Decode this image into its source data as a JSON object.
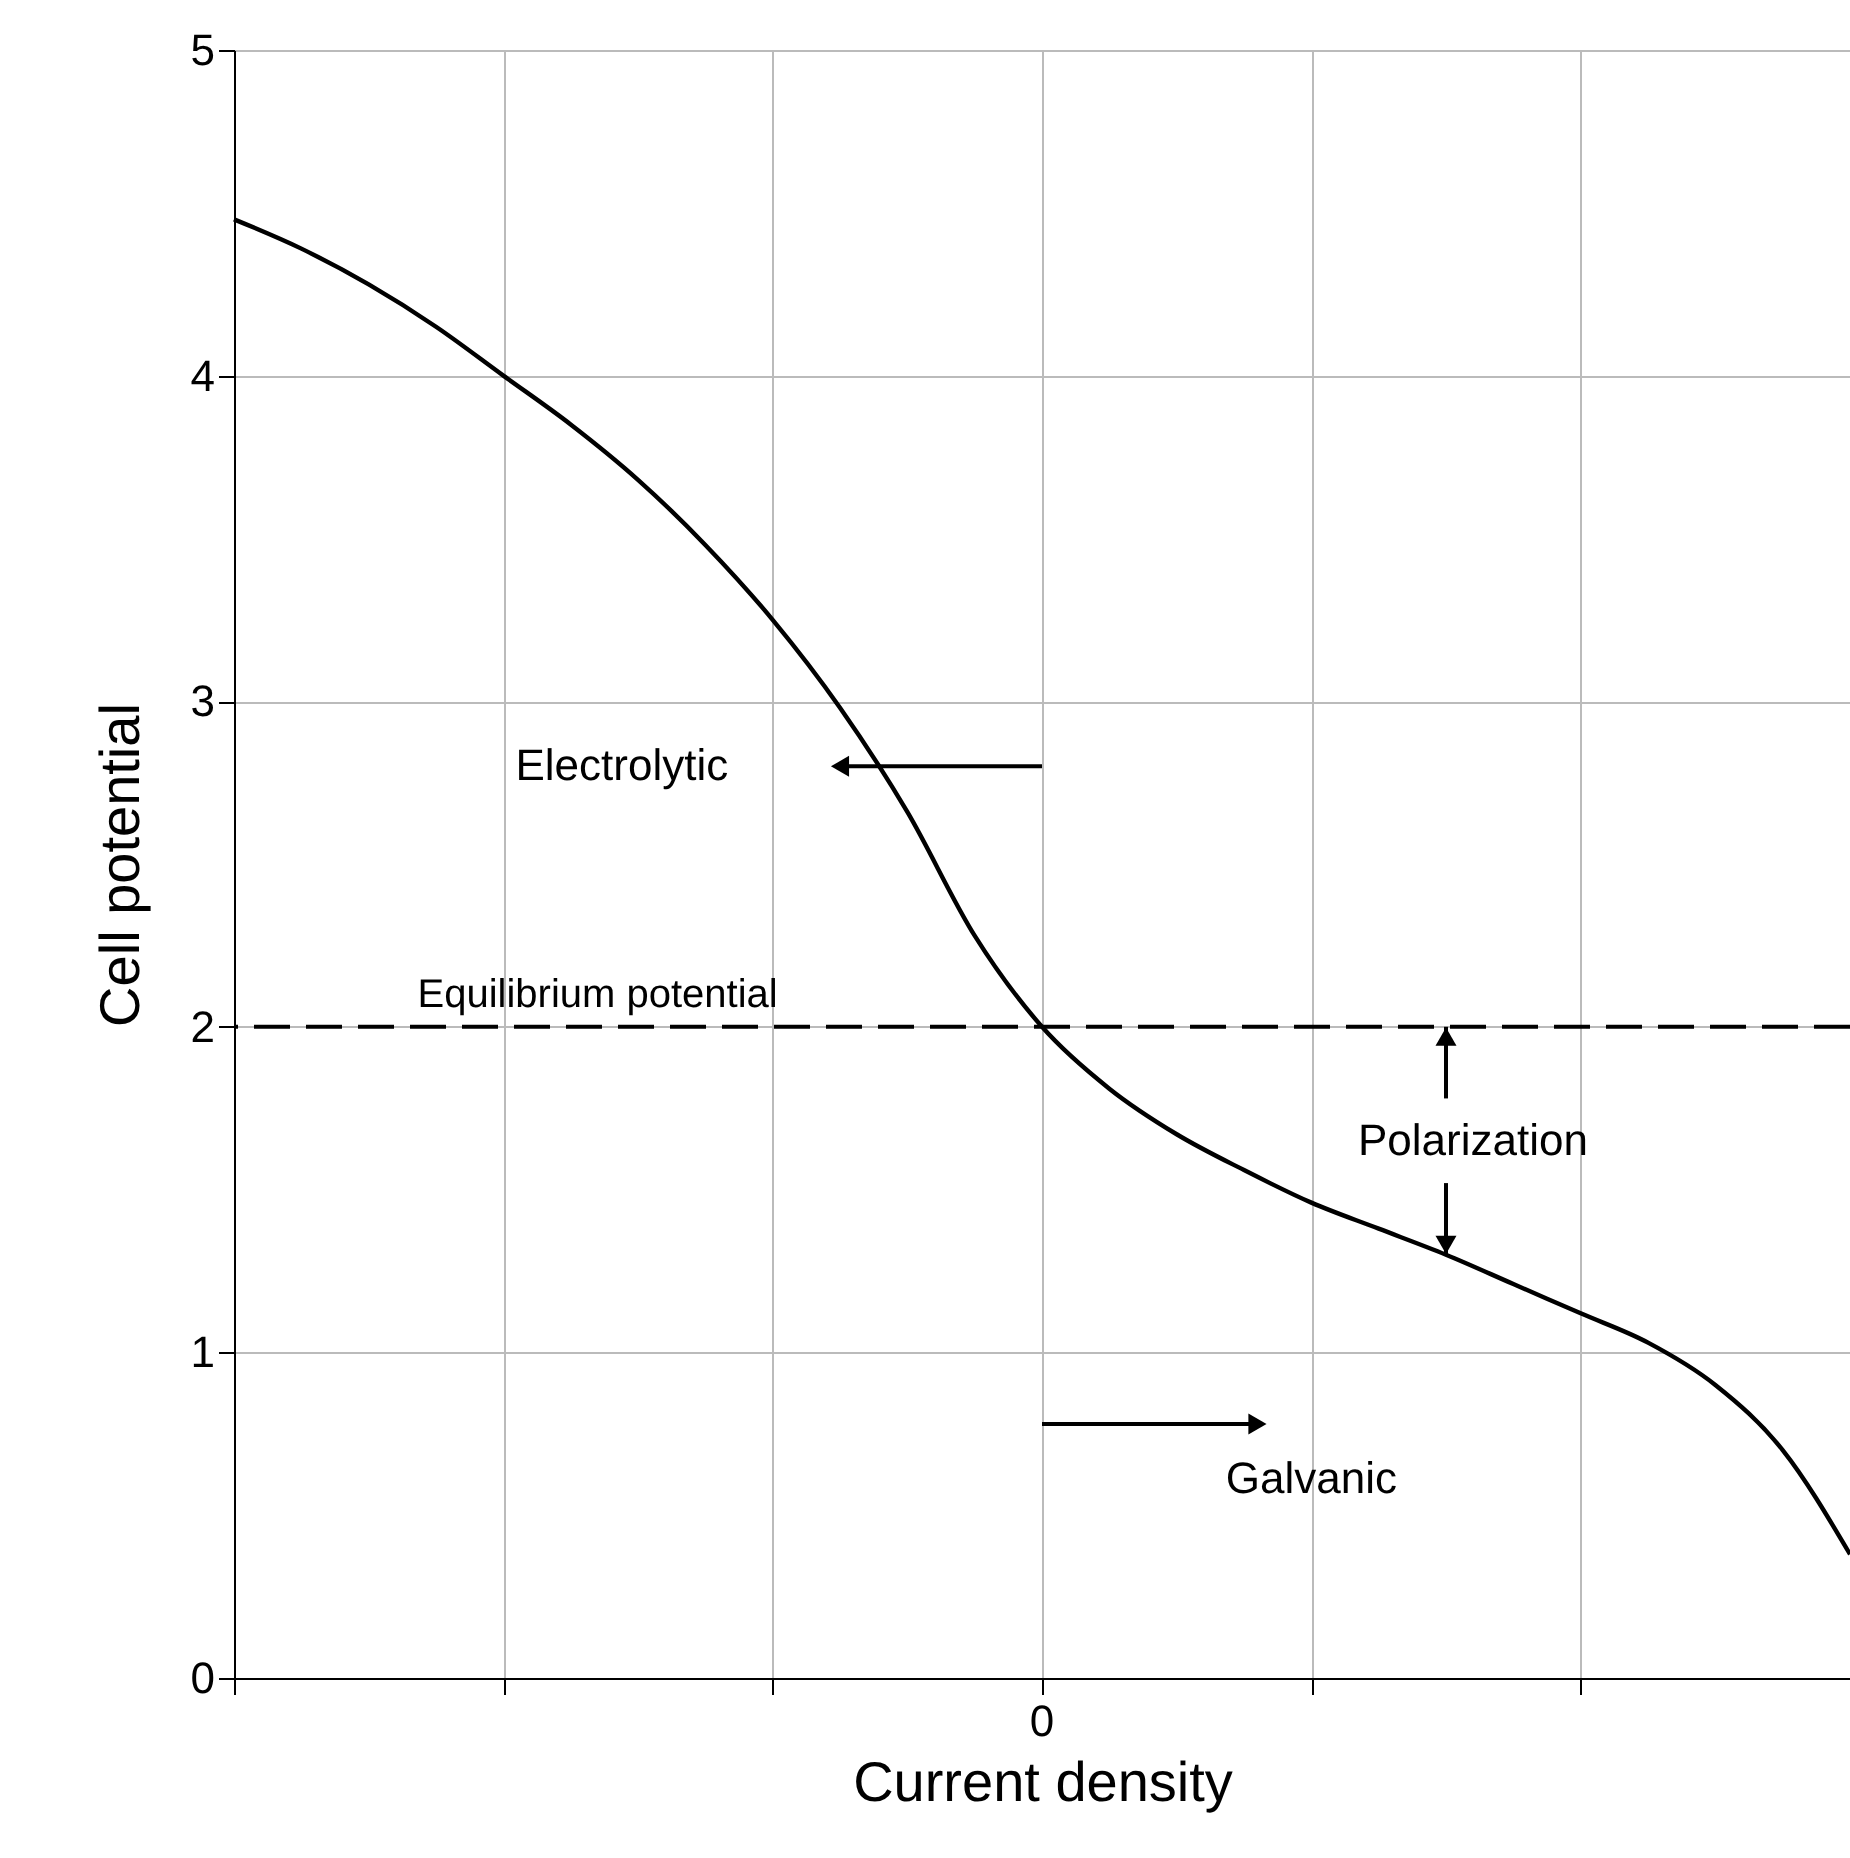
{
  "chart_data": {
    "type": "line",
    "xlabel": "Current density",
    "ylabel": "Cell potential",
    "categories": [
      null,
      null,
      null,
      null,
      null,
      null,
      null,
      null,
      null,
      null,
      null,
      null,
      null,
      null,
      null,
      null,
      null,
      null,
      null,
      null,
      null,
      null,
      null,
      null,
      null
    ],
    "series": [
      {
        "color": "#000000",
        "values": [
          4.48,
          4.39,
          4.28,
          4.15,
          4.0,
          3.85,
          3.68,
          3.48,
          3.25,
          2.98,
          2.66,
          2.28,
          2.0,
          1.81,
          1.67,
          1.56,
          1.46,
          1.38,
          1.3,
          1.21,
          1.12,
          1.03,
          0.9,
          0.7,
          0.38
        ]
      }
    ],
    "ylim": [
      0,
      5
    ],
    "yticks": [
      0,
      1,
      2,
      3,
      4,
      5
    ],
    "grid": true,
    "marker": "none",
    "line_style": "solid",
    "ref_lines": [
      {
        "axis": "y",
        "value": 2,
        "label": "Equilibrium potential",
        "line_style": "dashed",
        "color": "#000000"
      }
    ],
    "annotations": [
      "0",
      "Electrolytic",
      "Galvanic",
      "Polarization"
    ]
  }
}
